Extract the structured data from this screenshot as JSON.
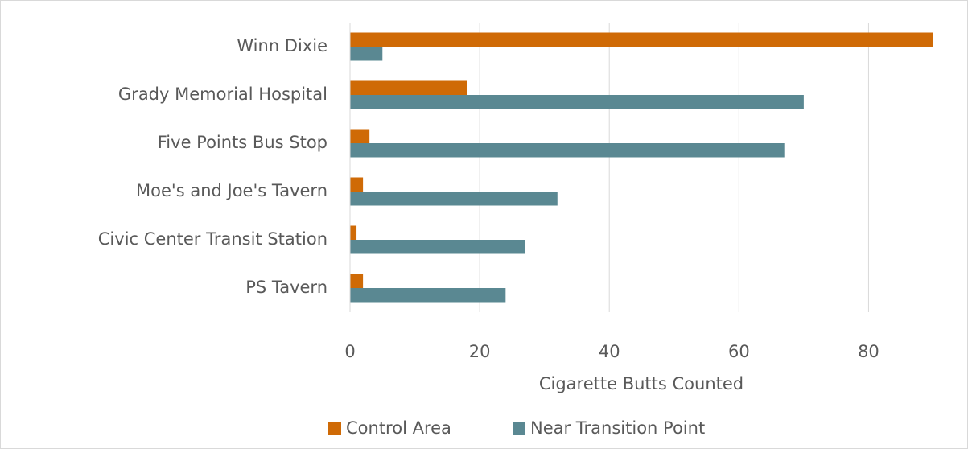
{
  "chart_data": {
    "type": "barh",
    "categories": [
      "Winn Dixie",
      "Grady Memorial Hospital",
      "Five Points Bus Stop",
      "Moe's and Joe's Tavern",
      "Civic Center Transit Station",
      "PS Tavern"
    ],
    "series": [
      {
        "name": "Control Area",
        "color": "#cf6a06",
        "values": [
          90,
          18,
          3,
          2,
          1,
          2
        ]
      },
      {
        "name": "Near Transition Point",
        "color": "#5a8892",
        "values": [
          5,
          70,
          67,
          32,
          27,
          24
        ]
      }
    ],
    "x_label": "Cigarette Butts Counted",
    "xlim": [
      0,
      90
    ],
    "xticks": [
      0,
      20,
      40,
      60,
      80
    ],
    "grid": true,
    "legend": "bottom"
  }
}
